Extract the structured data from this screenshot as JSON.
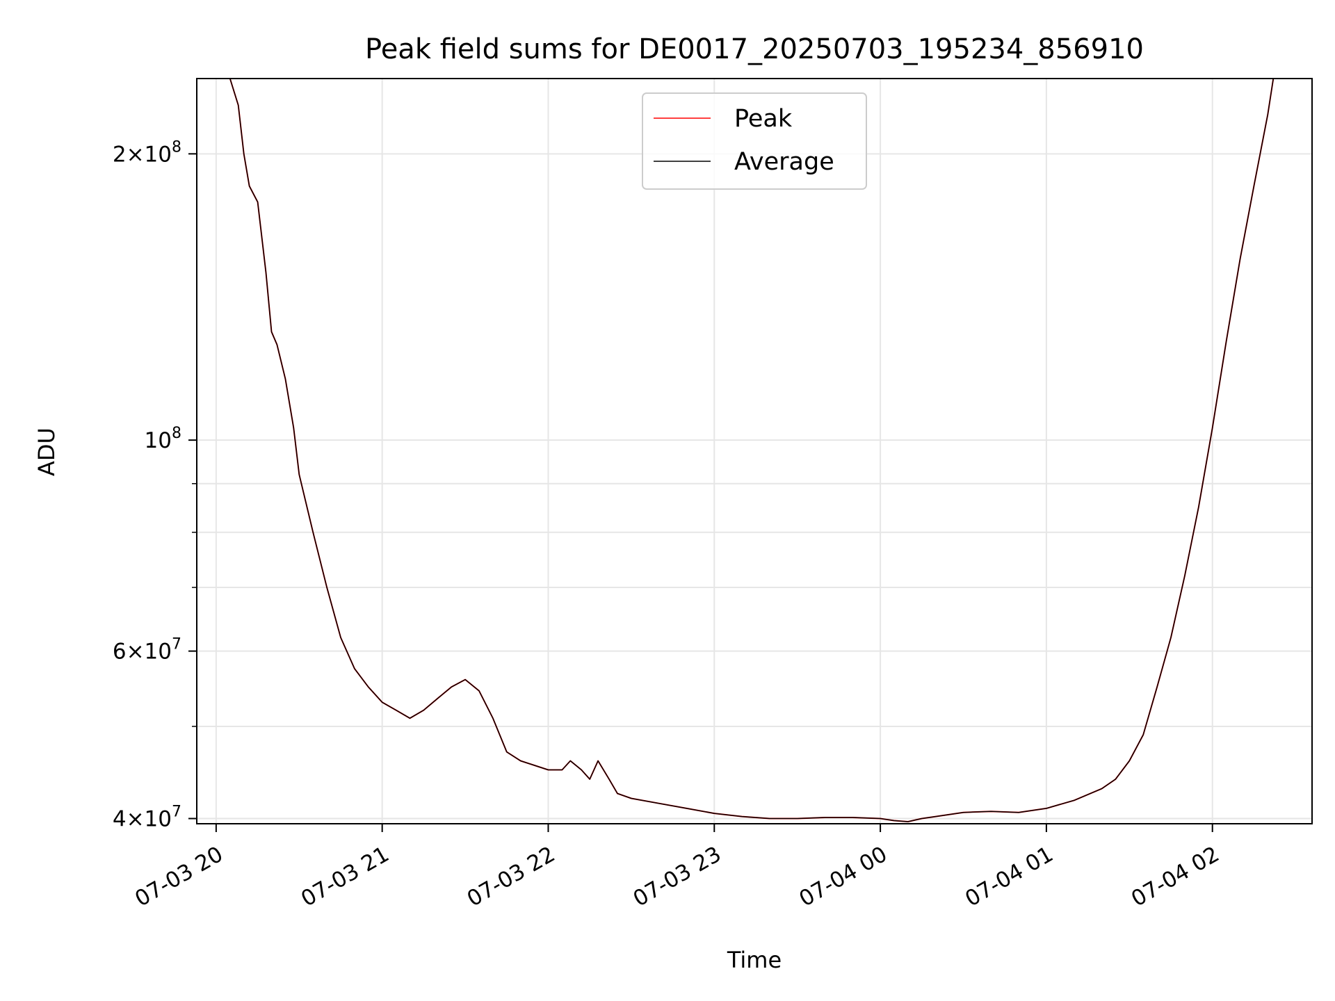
{
  "chart_data": {
    "type": "line",
    "title": "Peak field sums for DE0017_20250703_195234_856910",
    "xlabel": "Time",
    "ylabel": "ADU",
    "yscale": "log",
    "grid": true,
    "legend_placement": "top-center",
    "xlim": [
      "2025-07-03 19:53",
      "2025-07-04 02:36"
    ],
    "ylim": [
      39500000,
      240000000
    ],
    "x_ticks": [
      "2025-07-03 20:00",
      "2025-07-03 21:00",
      "2025-07-03 22:00",
      "2025-07-03 23:00",
      "2025-07-04 00:00",
      "2025-07-04 01:00",
      "2025-07-04 02:00"
    ],
    "x_tick_labels": [
      "07-03 20",
      "07-03 21",
      "07-03 22",
      "07-03 23",
      "07-04 00",
      "07-04 01",
      "07-04 02"
    ],
    "y_major_ticks": [
      {
        "value": 40000000,
        "mantissa": "4",
        "exponent": "7"
      },
      {
        "value": 60000000,
        "mantissa": "6",
        "exponent": "7"
      },
      {
        "value": 100000000,
        "mantissa": "",
        "exponent": "8"
      },
      {
        "value": 200000000,
        "mantissa": "2",
        "exponent": "8"
      }
    ],
    "y_minor_ticks": [
      50000000,
      70000000,
      80000000,
      90000000
    ],
    "legend": [
      "Peak",
      "Average"
    ],
    "colors": {
      "Peak": "#ff0000",
      "Average": "#000000"
    },
    "x": [
      "2025-07-03 20:05",
      "2025-07-03 20:08",
      "2025-07-03 20:10",
      "2025-07-03 20:12",
      "2025-07-03 20:15",
      "2025-07-03 20:18",
      "2025-07-03 20:20",
      "2025-07-03 20:22",
      "2025-07-03 20:25",
      "2025-07-03 20:28",
      "2025-07-03 20:30",
      "2025-07-03 20:35",
      "2025-07-03 20:40",
      "2025-07-03 20:45",
      "2025-07-03 20:50",
      "2025-07-03 20:55",
      "2025-07-03 21:00",
      "2025-07-03 21:05",
      "2025-07-03 21:10",
      "2025-07-03 21:15",
      "2025-07-03 21:20",
      "2025-07-03 21:25",
      "2025-07-03 21:30",
      "2025-07-03 21:35",
      "2025-07-03 21:40",
      "2025-07-03 21:45",
      "2025-07-03 21:50",
      "2025-07-03 21:55",
      "2025-07-03 22:00",
      "2025-07-03 22:05",
      "2025-07-03 22:08",
      "2025-07-03 22:12",
      "2025-07-03 22:15",
      "2025-07-03 22:18",
      "2025-07-03 22:22",
      "2025-07-03 22:25",
      "2025-07-03 22:30",
      "2025-07-03 22:40",
      "2025-07-03 22:50",
      "2025-07-03 23:00",
      "2025-07-03 23:10",
      "2025-07-03 23:20",
      "2025-07-03 23:30",
      "2025-07-03 23:40",
      "2025-07-03 23:50",
      "2025-07-04 00:00",
      "2025-07-04 00:05",
      "2025-07-04 00:10",
      "2025-07-04 00:15",
      "2025-07-04 00:20",
      "2025-07-04 00:30",
      "2025-07-04 00:40",
      "2025-07-04 00:50",
      "2025-07-04 01:00",
      "2025-07-04 01:10",
      "2025-07-04 01:20",
      "2025-07-04 01:25",
      "2025-07-04 01:30",
      "2025-07-04 01:35",
      "2025-07-04 01:40",
      "2025-07-04 01:45",
      "2025-07-04 01:50",
      "2025-07-04 01:55",
      "2025-07-04 02:00",
      "2025-07-04 02:05",
      "2025-07-04 02:10",
      "2025-07-04 02:15",
      "2025-07-04 02:20",
      "2025-07-04 02:22"
    ],
    "series": [
      {
        "name": "Average",
        "values": [
          240000000,
          225000000,
          200000000,
          185000000,
          178000000,
          150000000,
          130000000,
          126000000,
          116000000,
          103000000,
          92000000,
          80000000,
          70000000,
          62000000,
          57500000,
          55000000,
          53000000,
          52000000,
          51000000,
          52000000,
          53500000,
          55000000,
          56000000,
          54500000,
          51000000,
          47000000,
          46000000,
          45500000,
          45000000,
          45000000,
          46000000,
          45000000,
          44000000,
          46000000,
          44000000,
          42500000,
          42000000,
          41500000,
          41000000,
          40500000,
          40200000,
          40000000,
          40000000,
          40100000,
          40100000,
          40000000,
          39800000,
          39700000,
          40000000,
          40200000,
          40600000,
          40700000,
          40600000,
          41000000,
          41800000,
          43000000,
          44000000,
          46000000,
          49000000,
          55000000,
          62000000,
          72000000,
          85000000,
          103000000,
          127000000,
          155000000,
          185000000,
          220000000,
          240000000
        ]
      },
      {
        "name": "Peak",
        "values": [
          240000000,
          225000000,
          200000000,
          185000000,
          178000000,
          150000000,
          130000000,
          126000000,
          116000000,
          103000000,
          92000000,
          80000000,
          70000000,
          62000000,
          57500000,
          55000000,
          53000000,
          52000000,
          51000000,
          52000000,
          53500000,
          55000000,
          56000000,
          54500000,
          51000000,
          47000000,
          46000000,
          45500000,
          45000000,
          45000000,
          46000000,
          45000000,
          44000000,
          46000000,
          44000000,
          42500000,
          42000000,
          41500000,
          41000000,
          40500000,
          40200000,
          40000000,
          40000000,
          40100000,
          40100000,
          40000000,
          39800000,
          39700000,
          40000000,
          40200000,
          40600000,
          40700000,
          40600000,
          41000000,
          41800000,
          43000000,
          44000000,
          46000000,
          49000000,
          55000000,
          62000000,
          72000000,
          85000000,
          103000000,
          127000000,
          155000000,
          185000000,
          220000000,
          240000000
        ]
      }
    ]
  }
}
